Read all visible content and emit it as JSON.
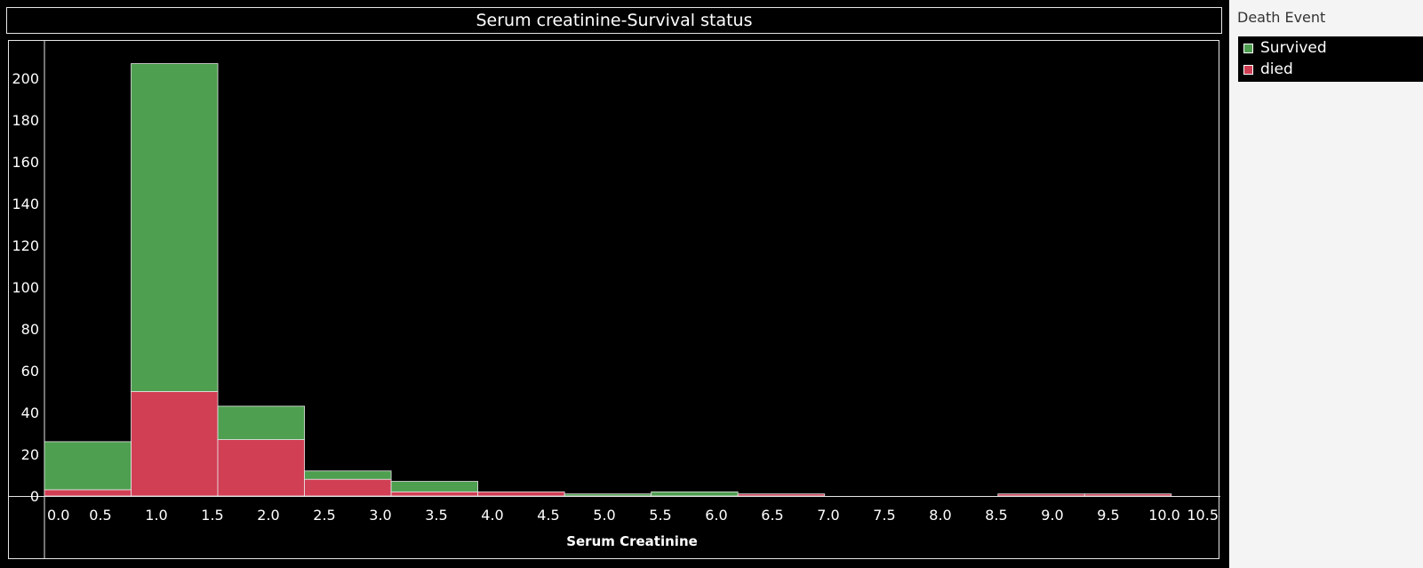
{
  "chart_data": {
    "type": "bar",
    "title": "Serum creatinine-Survival status",
    "xlabel": "Serum Creatinine",
    "ylabel": "",
    "ylim": [
      0,
      210
    ],
    "xlim": [
      0,
      10.5
    ],
    "x_ticks": [
      "0.0",
      "0.5",
      "1.0",
      "1.5",
      "2.0",
      "2.5",
      "3.0",
      "3.5",
      "4.0",
      "4.5",
      "5.0",
      "5.5",
      "6.0",
      "6.5",
      "7.0",
      "7.5",
      "8.0",
      "8.5",
      "9.0",
      "9.5",
      "10.0",
      "10.5"
    ],
    "y_ticks": [
      0,
      20,
      40,
      60,
      80,
      100,
      120,
      140,
      160,
      180,
      200
    ],
    "bin_width": 0.774,
    "bin_starts": [
      0.0,
      0.774,
      1.548,
      2.322,
      3.096,
      3.87,
      4.644,
      5.418,
      6.192,
      6.966,
      7.74,
      8.514,
      9.288
    ],
    "stacking": "stacked",
    "legend_title": "Death Event",
    "legend_position": "right",
    "series": [
      {
        "name": "died",
        "color": "#d13f55",
        "values": [
          3,
          50,
          27,
          8,
          2,
          2,
          0,
          0,
          1,
          0,
          0,
          1,
          1
        ]
      },
      {
        "name": "Survived",
        "color": "#4e9f50",
        "values": [
          23,
          157,
          16,
          4,
          5,
          0,
          1,
          2,
          0,
          0,
          0,
          0,
          0
        ]
      }
    ]
  }
}
